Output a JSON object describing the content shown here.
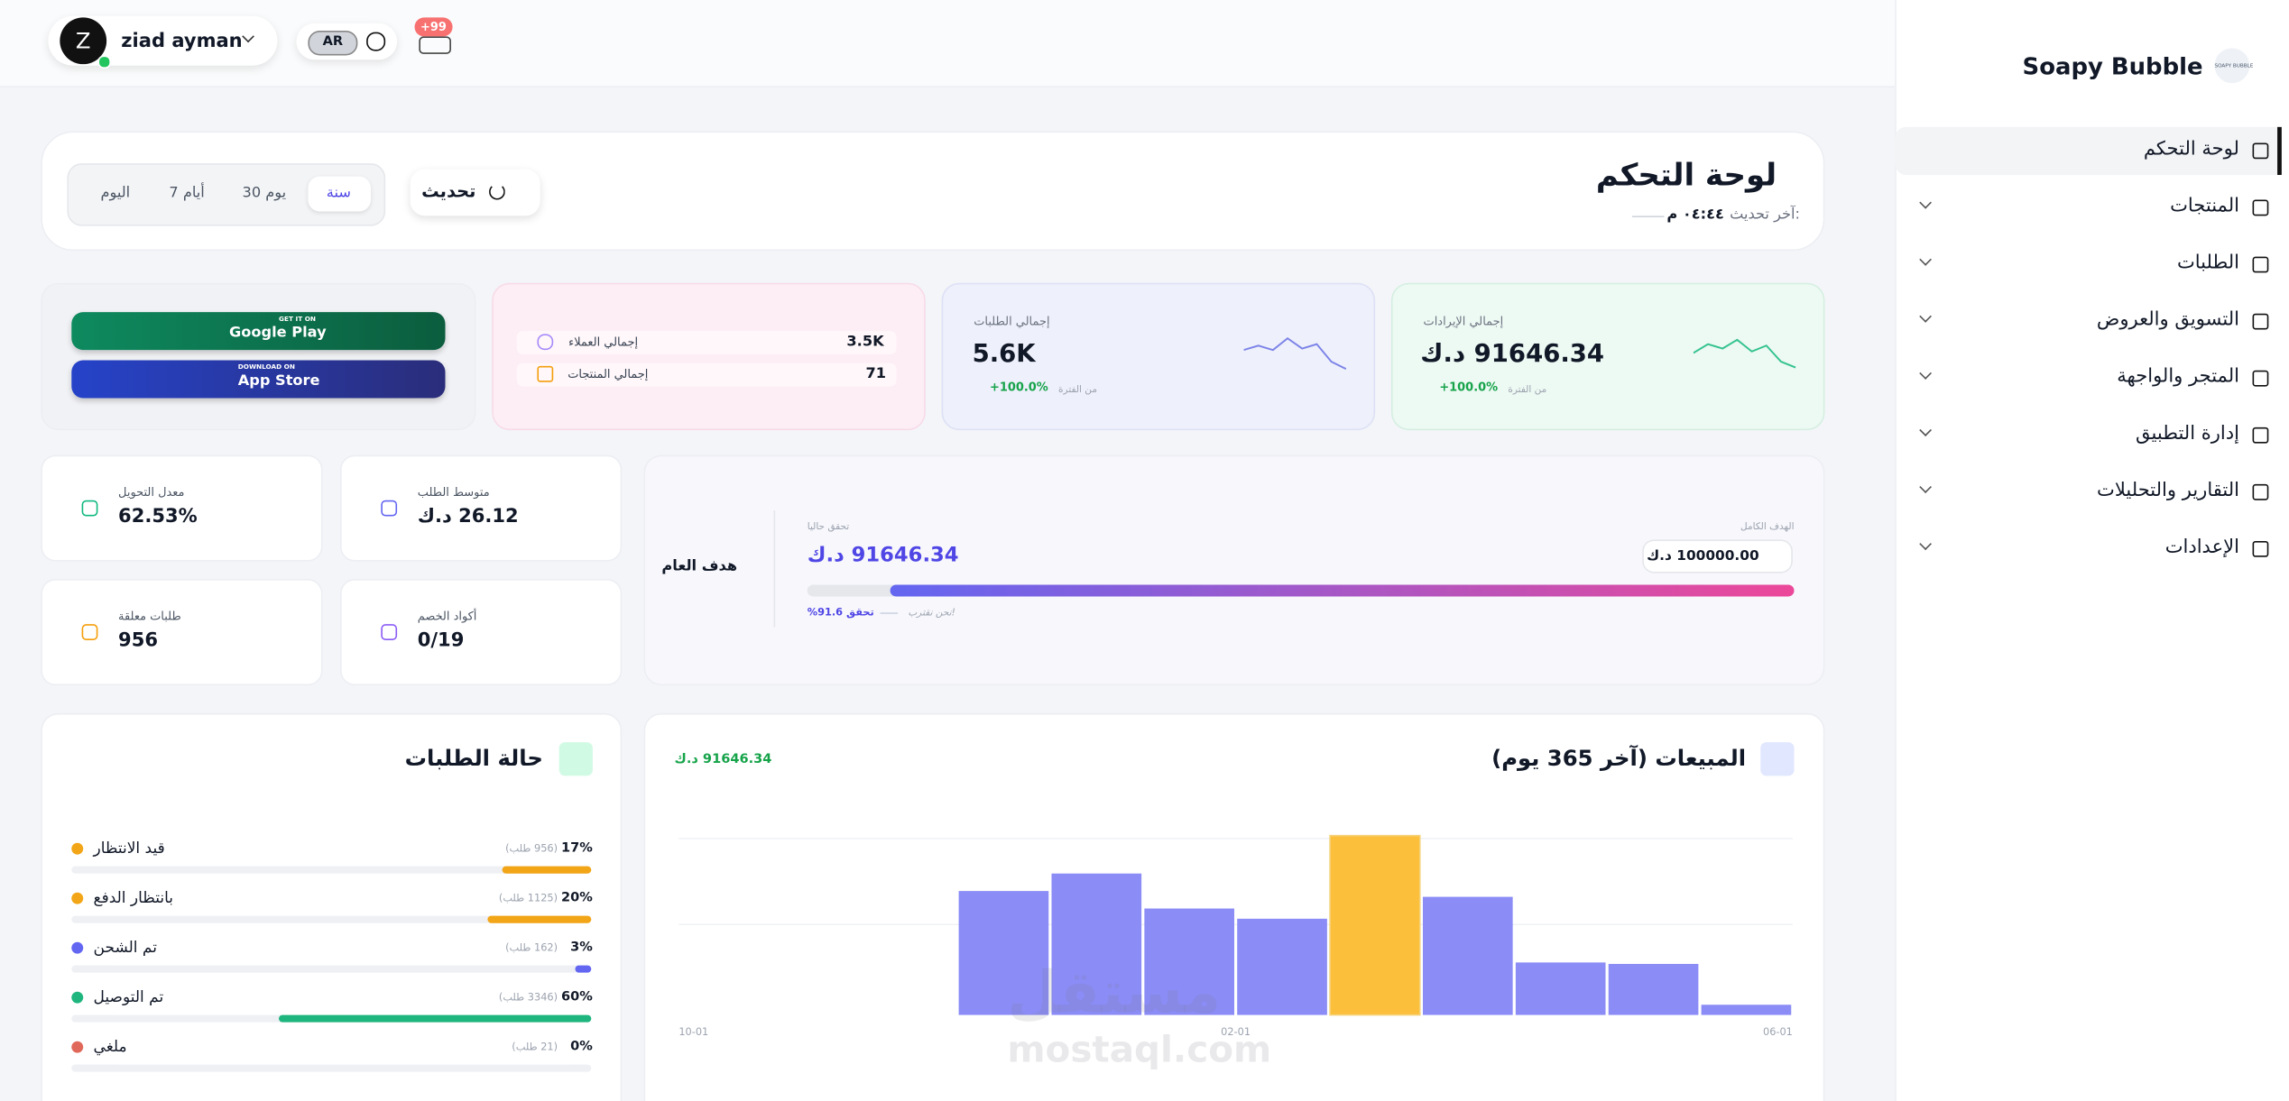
{
  "topbar": {
    "user_initial": "Z",
    "user_name": "ziad ayman",
    "language": "AR",
    "notifications": "+99"
  },
  "sidebar": {
    "brand": "Soapy Bubble",
    "logo_text": "SOAPY BUBBLE",
    "menu": [
      "لوحة التحكم",
      "المنتجات",
      "الطلبات",
      "التسويق والعروض",
      "المتجر والواجهة",
      "إدارة التطبيق",
      "التقارير والتحليلات",
      "الإعدادات"
    ]
  },
  "header": {
    "title": "لوحة التحكم",
    "last_update_label": "آخر تحديث:",
    "last_update_time": "٠٤:٤٤ م",
    "refresh": "تحديث",
    "periods": [
      "سنة",
      "30 يوم",
      "7 أيام",
      "اليوم"
    ]
  },
  "stats": {
    "revenue": {
      "label": "إجمالي الإيرادات",
      "value": "91646.34 د.ك",
      "change": "+100.0%",
      "change_note": "من الفترة"
    },
    "orders": {
      "label": "إجمالي الطلبات",
      "value": "5.6K",
      "change": "+100.0%",
      "change_note": "من الفترة"
    },
    "customers": {
      "label": "إجمالي العملاء",
      "value": "3.5K"
    },
    "products": {
      "label": "إجمالي المنتجات",
      "value": "71"
    }
  },
  "apps": {
    "google_top": "GET IT ON",
    "google": "Google Play",
    "apple_top": "DOWNLOAD ON",
    "apple": "App Store"
  },
  "goal": {
    "title": "هدف العام",
    "target_label": "الهدف الكامل",
    "target": "100000.00 د.ك",
    "current_label": "تحقق حاليا",
    "current": "91646.34 د.ك",
    "note": "نحن نقترب!",
    "percent": 91.6,
    "percent_label": "تحقق 91.6%"
  },
  "metrics": [
    {
      "label": "متوسط الطلب",
      "value": "26.12 د.ك"
    },
    {
      "label": "معدل التحويل",
      "value": "62.53%"
    },
    {
      "label": "أكواد الخصم",
      "value": "0/19"
    },
    {
      "label": "طلبات معلقة",
      "value": "956"
    }
  ],
  "sales_chart": {
    "type": "bar",
    "title": "المبيعات (آخر 365 يوم)",
    "total": "91646.34 د.ك",
    "values": [
      0,
      0,
      0,
      12920,
      14744,
      11096,
      10032,
      18696,
      12312,
      5472,
      5320,
      1064
    ],
    "x_labels": [
      "10-01",
      "02-01",
      "06-01"
    ],
    "color": "#8b8cf6",
    "highlight_color": "#fbbf3c"
  },
  "order_status": {
    "title": "حالة الطلبات",
    "rows": [
      {
        "name": "قيد الانتظار",
        "percent": 17,
        "percent_label": "17%",
        "count": "(956 طلب)",
        "color": "#f2a516"
      },
      {
        "name": "بانتظار الدفع",
        "percent": 20,
        "percent_label": "20%",
        "count": "(1125 طلب)",
        "color": "#f2a516"
      },
      {
        "name": "تم الشحن",
        "percent": 3,
        "percent_label": "3%",
        "count": "(162 طلب)",
        "color": "#6366f1"
      },
      {
        "name": "تم التوصيل",
        "percent": 60,
        "percent_label": "60%",
        "count": "(3346 طلب)",
        "color": "#1fb57e"
      },
      {
        "name": "ملغي",
        "percent": 0,
        "percent_label": "0%",
        "count": "(21 طلب)",
        "color": "#e0685a"
      }
    ]
  },
  "watermark": {
    "arabic": "مستقل",
    "latin": "mostaql.com"
  }
}
